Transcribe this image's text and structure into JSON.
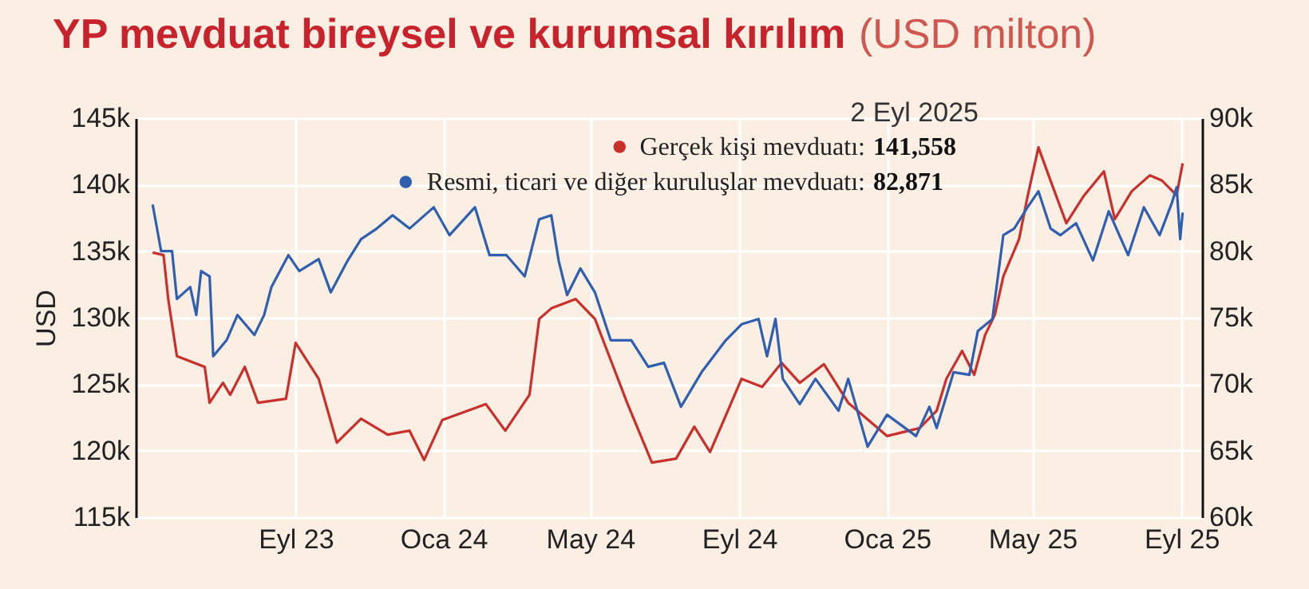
{
  "chart_data": {
    "type": "line",
    "title": "YP mevduat bireysel ve kurumsal kırılım",
    "subtitle": "(USD milton)",
    "ylabel": "USD",
    "annotations": [
      "2 Eyl 2025",
      "141,558",
      "82,871"
    ],
    "xlim": [
      "2023-04-22",
      "2025-09-18"
    ],
    "xticks": [
      {
        "value": "2023-09-01",
        "label": "Eyl 23"
      },
      {
        "value": "2024-01-01",
        "label": "Oca 24"
      },
      {
        "value": "2024-05-01",
        "label": "May 24"
      },
      {
        "value": "2024-09-01",
        "label": "Eyl 24"
      },
      {
        "value": "2025-01-01",
        "label": "Oca 25"
      },
      {
        "value": "2025-05-01",
        "label": "May 25"
      },
      {
        "value": "2025-09-01",
        "label": "Eyl 25"
      }
    ],
    "ylim": [
      115,
      145
    ],
    "yticks": [
      {
        "value": 115,
        "label": "115k"
      },
      {
        "value": 120,
        "label": "120k"
      },
      {
        "value": 125,
        "label": "125k"
      },
      {
        "value": 130,
        "label": "130k"
      },
      {
        "value": 135,
        "label": "135k"
      },
      {
        "value": 140,
        "label": "140k"
      },
      {
        "value": 145,
        "label": "145k"
      }
    ],
    "y2lim": [
      60,
      90
    ],
    "y2ticks": [
      {
        "value": 60,
        "label": "60k"
      },
      {
        "value": 65,
        "label": "65k"
      },
      {
        "value": 70,
        "label": "70k"
      },
      {
        "value": 75,
        "label": "75k"
      },
      {
        "value": 80,
        "label": "80k"
      },
      {
        "value": 85,
        "label": "85k"
      },
      {
        "value": 90,
        "label": "90k"
      }
    ],
    "grid": true,
    "legend": "top right",
    "line_style": "solid",
    "marker": "none",
    "series": [
      {
        "name": "Gerçek kişi mevduatı:",
        "color": "#c9302c",
        "x": [
          "2023-05-06",
          "2023-05-15",
          "2023-05-19",
          "2023-05-26",
          "2023-06-18",
          "2023-06-22",
          "2023-07-03",
          "2023-07-09",
          "2023-07-21",
          "2023-08-01",
          "2023-08-24",
          "2023-09-01",
          "2023-09-20",
          "2023-10-05",
          "2023-10-25",
          "2023-11-16",
          "2023-12-04",
          "2023-12-16",
          "2023-12-31",
          "2024-02-05",
          "2024-02-21",
          "2024-03-12",
          "2024-03-20",
          "2024-03-30",
          "2024-04-19",
          "2024-05-05",
          "2024-06-01",
          "2024-06-21",
          "2024-07-11",
          "2024-07-26",
          "2024-08-08",
          "2024-09-03",
          "2024-09-20",
          "2024-10-06",
          "2024-10-21",
          "2024-11-10",
          "2024-11-30",
          "2025-01-01",
          "2025-01-28",
          "2025-02-11",
          "2025-02-19",
          "2025-03-04",
          "2025-03-14",
          "2025-03-23",
          "2025-03-31",
          "2025-04-07",
          "2025-04-20",
          "2025-04-27",
          "2025-05-06",
          "2025-05-16",
          "2025-05-29",
          "2025-06-12",
          "2025-06-29",
          "2025-07-08",
          "2025-07-22",
          "2025-08-06",
          "2025-08-16",
          "2025-08-28",
          "2025-09-02"
        ],
        "values": [
          134.9,
          134.7,
          131.3,
          127.1,
          126.3,
          123.6,
          125.1,
          124.2,
          126.3,
          123.6,
          123.9,
          128.1,
          125.4,
          120.6,
          122.4,
          121.2,
          121.5,
          119.3,
          122.3,
          123.5,
          121.5,
          124.2,
          129.9,
          130.7,
          131.4,
          129.9,
          123.5,
          119.1,
          119.4,
          121.8,
          119.9,
          125.4,
          124.8,
          126.6,
          125.1,
          126.5,
          123.6,
          121.1,
          121.7,
          123.0,
          125.4,
          127.5,
          125.7,
          128.7,
          130.2,
          133.1,
          135.9,
          139.1,
          142.8,
          140.3,
          137.1,
          139.1,
          141.0,
          137.4,
          139.5,
          140.7,
          140.3,
          139.2,
          141.6
        ]
      },
      {
        "name": "Resmi, ticari ve diğer kuruluşlar mevduatı:",
        "color": "#2f5fae",
        "axis": "y2",
        "x": [
          "2023-05-06",
          "2023-05-13",
          "2023-05-22",
          "2023-05-26",
          "2023-06-06",
          "2023-06-11",
          "2023-06-15",
          "2023-06-22",
          "2023-06-25",
          "2023-07-06",
          "2023-07-15",
          "2023-07-29",
          "2023-08-06",
          "2023-08-12",
          "2023-08-26",
          "2023-09-04",
          "2023-09-20",
          "2023-09-30",
          "2023-10-14",
          "2023-10-25",
          "2023-11-07",
          "2023-11-20",
          "2023-12-04",
          "2023-12-24",
          "2024-01-06",
          "2024-01-27",
          "2024-02-08",
          "2024-02-22",
          "2024-03-08",
          "2024-03-20",
          "2024-03-30",
          "2024-04-05",
          "2024-04-12",
          "2024-04-23",
          "2024-05-05",
          "2024-05-18",
          "2024-06-04",
          "2024-06-18",
          "2024-07-01",
          "2024-07-15",
          "2024-08-01",
          "2024-08-21",
          "2024-09-03",
          "2024-09-17",
          "2024-09-24",
          "2024-10-01",
          "2024-10-07",
          "2024-10-21",
          "2024-11-03",
          "2024-11-22",
          "2024-11-30",
          "2024-12-16",
          "2025-01-01",
          "2025-01-25",
          "2025-02-05",
          "2025-02-11",
          "2025-02-25",
          "2025-03-10",
          "2025-03-17",
          "2025-03-29",
          "2025-04-07",
          "2025-04-16",
          "2025-04-27",
          "2025-05-06",
          "2025-05-16",
          "2025-05-24",
          "2025-06-06",
          "2025-06-20",
          "2025-07-03",
          "2025-07-19",
          "2025-08-01",
          "2025-08-14",
          "2025-08-24",
          "2025-08-28",
          "2025-08-31",
          "2025-09-02"
        ],
        "values": [
          83.5,
          80.0,
          80.0,
          76.4,
          77.3,
          75.2,
          78.5,
          78.1,
          72.1,
          73.3,
          75.2,
          73.7,
          75.2,
          77.3,
          79.7,
          78.5,
          79.4,
          76.9,
          79.3,
          80.9,
          81.7,
          82.7,
          81.7,
          83.3,
          81.2,
          83.3,
          79.7,
          79.7,
          78.1,
          82.4,
          82.7,
          79.3,
          76.7,
          78.7,
          76.9,
          73.3,
          73.3,
          71.3,
          71.6,
          68.3,
          70.9,
          73.3,
          74.5,
          74.9,
          72.1,
          74.9,
          70.4,
          68.5,
          70.4,
          68.0,
          70.4,
          65.3,
          67.7,
          66.1,
          68.3,
          66.7,
          70.9,
          70.7,
          74.0,
          74.9,
          81.2,
          81.7,
          83.3,
          84.5,
          81.7,
          81.2,
          82.1,
          79.3,
          83.0,
          79.7,
          83.3,
          81.2,
          83.6,
          84.8,
          80.9,
          82.9
        ]
      }
    ]
  }
}
